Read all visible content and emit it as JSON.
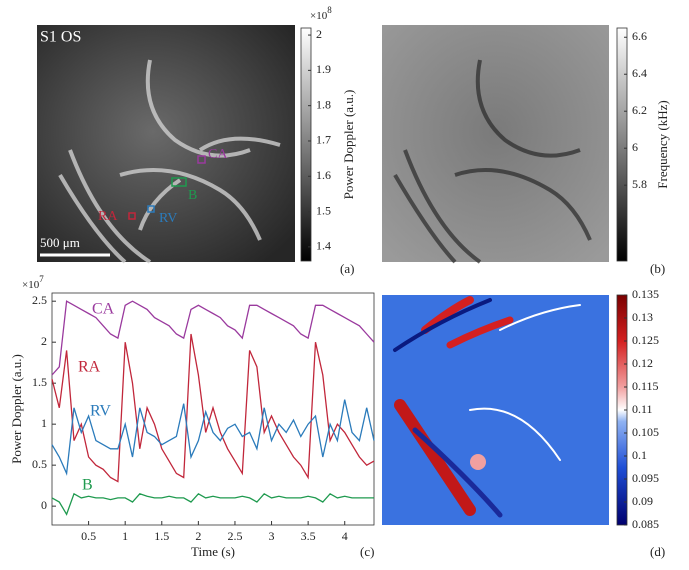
{
  "image_a": {
    "panel_label": "(a)",
    "title": "S1 OS",
    "scale_bar": "500 μm",
    "roi_labels": [
      "CA",
      "B",
      "RV",
      "RA"
    ],
    "colorbar": {
      "label": "Power Doppler (a.u.)",
      "multiplier": "×10",
      "exponent": "8",
      "lim": [
        1.36,
        2.02
      ],
      "ticks": [
        1.4,
        1.5,
        1.6,
        1.7,
        1.8,
        1.9,
        2
      ]
    }
  },
  "image_b": {
    "panel_label": "(b)",
    "colorbar": {
      "label": "Frequency (kHz)",
      "lim": [
        5.39,
        6.65
      ],
      "ticks": [
        5.8,
        6,
        6.2,
        6.4,
        6.6
      ]
    }
  },
  "chart_data": {
    "type": "line",
    "panel_label": "(c)",
    "xlabel": "Time (s)",
    "ylabel": "Power Doppler (a.u.)",
    "multiplier": "×10",
    "exponent": "7",
    "x": [
      0,
      0.1,
      0.2,
      0.3,
      0.4,
      0.5,
      0.6,
      0.7,
      0.8,
      0.9,
      1,
      1.1,
      1.2,
      1.3,
      1.4,
      1.5,
      1.6,
      1.7,
      1.8,
      1.9,
      2,
      2.1,
      2.2,
      2.3,
      2.4,
      2.5,
      2.6,
      2.7,
      2.8,
      2.9,
      3,
      3.1,
      3.2,
      3.3,
      3.4,
      3.5,
      3.6,
      3.7,
      3.8,
      3.9,
      4,
      4.1,
      4.2,
      4.3,
      4.4
    ],
    "xlim": [
      0,
      4.4
    ],
    "xticks": [
      0.5,
      1,
      1.5,
      2,
      2.5,
      3,
      3.5,
      4
    ],
    "ylim": [
      -0.23,
      2.6
    ],
    "yticks": [
      0,
      0.5,
      1,
      1.5,
      2,
      2.5
    ],
    "series": [
      {
        "name": "CA",
        "color": "#9a3a9e",
        "values": [
          1.6,
          1.7,
          2.5,
          2.45,
          2.4,
          2.35,
          2.3,
          2.2,
          2.1,
          2.05,
          2.45,
          2.5,
          2.45,
          2.4,
          2.3,
          2.25,
          2.2,
          2.1,
          2.05,
          2.4,
          2.45,
          2.4,
          2.35,
          2.3,
          2.2,
          2.15,
          2.05,
          2.45,
          2.45,
          2.4,
          2.35,
          2.3,
          2.25,
          2.2,
          2.1,
          2.05,
          2.45,
          2.45,
          2.4,
          2.35,
          2.3,
          2.25,
          2.2,
          2.1,
          2.0
        ]
      },
      {
        "name": "RA",
        "color": "#c1273b",
        "values": [
          1.55,
          1.2,
          1.9,
          0.8,
          1.0,
          0.6,
          0.5,
          0.45,
          0.35,
          0.3,
          2.0,
          1.5,
          0.7,
          1.2,
          1.0,
          0.7,
          0.55,
          0.4,
          0.35,
          2.1,
          1.6,
          0.9,
          1.2,
          0.9,
          0.7,
          0.55,
          0.4,
          1.9,
          1.7,
          0.9,
          1.1,
          0.9,
          0.75,
          0.6,
          0.5,
          0.35,
          2.0,
          1.6,
          0.8,
          1.0,
          0.9,
          0.75,
          0.6,
          0.5,
          0.55
        ]
      },
      {
        "name": "RV",
        "color": "#2b7bbb",
        "values": [
          0.75,
          0.6,
          0.4,
          1.2,
          0.9,
          1.1,
          0.8,
          0.75,
          0.7,
          0.7,
          1.0,
          0.6,
          1.2,
          0.9,
          0.85,
          0.75,
          0.8,
          0.85,
          1.25,
          0.6,
          0.8,
          1.15,
          0.9,
          0.8,
          0.95,
          1.0,
          0.85,
          0.9,
          0.7,
          1.2,
          0.8,
          1.0,
          0.9,
          1.05,
          0.85,
          1.0,
          1.1,
          0.6,
          1.0,
          0.8,
          1.3,
          0.9,
          0.8,
          1.2,
          0.8
        ]
      },
      {
        "name": "B",
        "color": "#1f9a4f",
        "values": [
          0.1,
          0.05,
          -0.1,
          0.15,
          0.1,
          0.12,
          0.1,
          0.1,
          0.08,
          0.1,
          0.1,
          0.05,
          0.15,
          0.12,
          0.1,
          0.1,
          0.12,
          0.1,
          0.1,
          0.05,
          0.15,
          0.1,
          0.12,
          0.1,
          0.1,
          0.1,
          0.12,
          0.1,
          0.05,
          0.15,
          0.1,
          0.12,
          0.1,
          0.1,
          0.1,
          0.12,
          0.1,
          0.05,
          0.15,
          0.1,
          0.12,
          0.1,
          0.1,
          0.1,
          0.1
        ]
      }
    ]
  },
  "image_d": {
    "panel_label": "(d)",
    "colorbar": {
      "lim": [
        0.085,
        0.135
      ],
      "ticks": [
        0.085,
        0.09,
        0.095,
        0.1,
        0.105,
        0.11,
        0.115,
        0.12,
        0.125,
        0.13,
        0.135
      ]
    }
  }
}
